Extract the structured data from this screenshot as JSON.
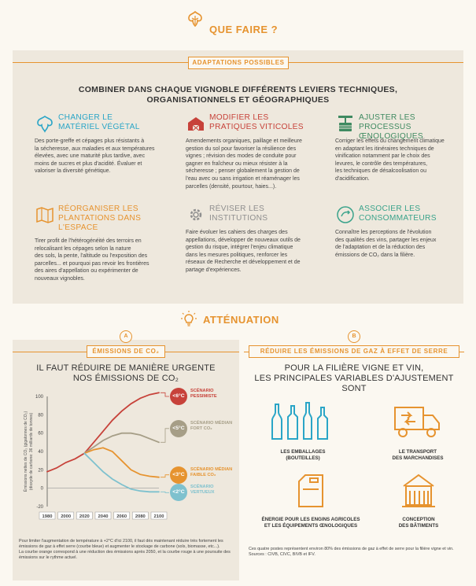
{
  "page": {
    "title": "QUE FAIRE ?",
    "colors": {
      "accent": "#e6932f",
      "panel": "#eee8dd",
      "background": "#fbf8f1",
      "blue": "#2aa5c7",
      "red": "#c7423a"
    }
  },
  "adaptations": {
    "band_label": "ADAPTATIONS POSSIBLES",
    "headline": [
      "COMBINER DANS CHAQUE VIGNOBLE DIFFÉRENTS LEVIERS TECHNIQUES,",
      "ORGANISATIONNELS ET GÉOGRAPHIQUES"
    ],
    "tiles": [
      {
        "icon": "leaf-icon",
        "title": [
          "CHANGER LE",
          "MATÉRIEL VÉGÉTAL"
        ],
        "text": [
          "Des porte-greffe et cépages plus résistants à",
          "la sécheresse, aux maladies et aux températures",
          "élevées, avec une maturité plus tardive, avec",
          "moins de sucres et plus d'acidité. Évaluer et",
          "valoriser la diversité génétique."
        ]
      },
      {
        "icon": "barn-icon",
        "title": [
          "MODIFIER LES",
          "PRATIQUES VITICOLES"
        ],
        "text": [
          "Amendements organiques, paillage et meilleure",
          "gestion du sol pour favoriser la résilience des",
          "vignes ; révision des modes de conduite pour",
          "gagner en fraîcheur ou mieux résister à la",
          "sécheresse ; penser globalement la gestion de",
          "l'eau avec ou sans irrigation et réaménager les",
          "parcelles (densité, pourtour, haies...)."
        ]
      },
      {
        "icon": "wine-press-icon",
        "title": [
          "AJUSTER LES PROCESSUS",
          "ŒNOLOGIQUES"
        ],
        "text": [
          "Corriger les effets du changement climatique",
          "en adaptant les itinéraires techniques de",
          "vinification notamment par le choix des",
          "levures, le contrôle des températures,",
          "les techniques de désalcoolisation ou",
          "d'acidification."
        ]
      },
      {
        "icon": "map-icon",
        "title": [
          "RÉORGANISER LES",
          "PLANTATIONS DANS",
          "L'ESPACE"
        ],
        "text": [
          "Tirer profit de l'hétérogénéité des terroirs en",
          "relocalisant les cépages selon la nature",
          "des sols, la pente, l'altitude ou l'exposition des",
          "parcelles... et pourquoi pas revoir les frontières",
          "des aires d'appellation ou expérimenter de",
          "nouveaux vignobles."
        ]
      },
      {
        "icon": "gear-icon",
        "title": [
          "RÉVISER LES",
          "INSTITUTIONS"
        ],
        "text": [
          "Faire évoluer les cahiers des charges des",
          "appellations, développer de nouveaux outils de",
          "gestion du risque, intégrer l'enjeu climatique",
          "dans les mesures politiques, renforcer les",
          "réseaux de Recherche et développement et de",
          "partage d'expériences."
        ]
      },
      {
        "icon": "consumer-icon",
        "title": [
          "ASSOCIER LES",
          "CONSOMMATEURS"
        ],
        "text": [
          "Connaître les perceptions de l'évolution",
          "des qualités des vins, partager les enjeux",
          "de l'adaptation et de la réduction des",
          "émissions de CO₂ dans la filière."
        ]
      }
    ]
  },
  "attenuation": {
    "title": "ATTÉNUATION",
    "left": {
      "badge": "A",
      "band_label": "ÉMISSIONS DE CO₂",
      "headline": [
        "IL FAUT RÉDUIRE DE MANIÈRE URGENTE",
        "NOS ÉMISSIONS DE CO₂"
      ],
      "ylabel": [
        "Émissions nettes de CO₂ (gigatonnes de CO₂)",
        "(dioxyde de carbone: 36 milliards de tonnes)"
      ],
      "footnote": [
        "Pour limiter l'augmentation de température à +2°C d'ici 2100, il faut dès maintenant réduire très fortement les",
        "émissions de gaz à effet serre (courbe bleue) et augmenter le stockage de carbone (sols, biomasse, etc...).",
        "La courbe orange correspond à une réduction des émissions après 2050, et la courbe rouge à une poursuite des",
        "émissions sur le rythme actuel."
      ]
    },
    "right": {
      "badge": "B",
      "band_label": "RÉDUIRE LES ÉMISSIONS DE GAZ À EFFET DE SERRE",
      "headline": [
        "POUR LA FILIÈRE VIGNE ET VIN,",
        "LES PRINCIPALES VARIABLES D'AJUSTEMENT SONT"
      ],
      "variables": [
        {
          "icon": "bottles-icon",
          "label": [
            "LES EMBALLAGES",
            "(BOUTEILLES)"
          ]
        },
        {
          "icon": "truck-icon",
          "label": [
            "LE TRANSPORT",
            "DES MARCHANDISES"
          ]
        },
        {
          "icon": "jerrycan-icon",
          "label": [
            "ÉNERGIE POUR LES ENGINS AGRICOLES",
            "ET LES ÉQUIPEMENTS ŒNOLOGIQUES"
          ]
        },
        {
          "icon": "building-icon",
          "label": [
            "CONCEPTION",
            "DES BÂTIMENTS"
          ]
        }
      ],
      "footnote": [
        "Ces quatre postes représentent environ 80% des émissions de gaz à effet de serre pour la filière vigne et vin.",
        "Sources : CIVB, CIVC, BIVB et IFV."
      ]
    }
  },
  "chart_data": {
    "type": "line",
    "x": [
      1980,
      2000,
      2020,
      2040,
      2060,
      2080,
      2100
    ],
    "xlim": [
      1980,
      2100
    ],
    "ylim": [
      -20,
      100
    ],
    "yticks": [
      -20,
      0,
      20,
      40,
      60,
      80,
      100
    ],
    "series": [
      {
        "name": "SCÉNARIO PESSIMISTE",
        "badge": "<6°C",
        "color": "#c7423a",
        "points": [
          [
            1980,
            18
          ],
          [
            1990,
            22
          ],
          [
            2000,
            28
          ],
          [
            2010,
            32
          ],
          [
            2020,
            38
          ],
          [
            2030,
            50
          ],
          [
            2040,
            62
          ],
          [
            2050,
            74
          ],
          [
            2060,
            84
          ],
          [
            2070,
            92
          ],
          [
            2080,
            98
          ],
          [
            2090,
            102
          ],
          [
            2100,
            104
          ]
        ]
      },
      {
        "name": "SCÉNARIO MÉDIAN FORT CO₂",
        "badge": "<5°C",
        "color": "#a69e87",
        "points": [
          [
            2020,
            38
          ],
          [
            2030,
            45
          ],
          [
            2040,
            52
          ],
          [
            2050,
            57
          ],
          [
            2060,
            60
          ],
          [
            2070,
            60
          ],
          [
            2080,
            58
          ],
          [
            2090,
            54
          ],
          [
            2100,
            50
          ]
        ]
      },
      {
        "name": "SCÉNARIO MÉDIAN FAIBLE CO₂",
        "badge": "<3°C",
        "color": "#e6932f",
        "points": [
          [
            2020,
            38
          ],
          [
            2030,
            42
          ],
          [
            2040,
            44
          ],
          [
            2050,
            40
          ],
          [
            2060,
            30
          ],
          [
            2070,
            20
          ],
          [
            2080,
            15
          ],
          [
            2090,
            13
          ],
          [
            2100,
            12
          ]
        ]
      },
      {
        "name": "SCÉNARIO VERTUEUX",
        "badge": "<2°C",
        "color": "#7ec1ce",
        "points": [
          [
            2020,
            38
          ],
          [
            2030,
            28
          ],
          [
            2040,
            18
          ],
          [
            2050,
            10
          ],
          [
            2060,
            4
          ],
          [
            2070,
            -1
          ],
          [
            2080,
            -3
          ],
          [
            2090,
            -4
          ],
          [
            2100,
            -4
          ]
        ]
      }
    ]
  }
}
